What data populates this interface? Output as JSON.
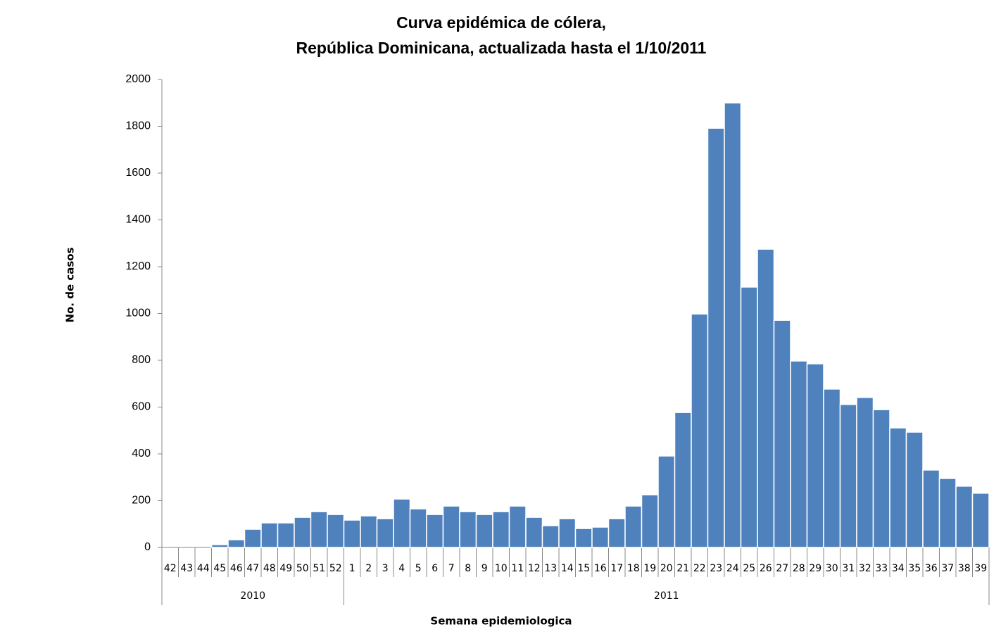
{
  "chart_data": {
    "type": "bar",
    "title": [
      "Curva epidémica de cólera,",
      "República Dominicana, actualizada hasta el  1/10/2011"
    ],
    "y_label": "No. de casos",
    "x_label": "Semana epidemiologica",
    "groups": [
      {
        "label": "2010",
        "categories": [
          "42",
          "43",
          "44",
          "45",
          "46",
          "47",
          "48",
          "49",
          "50",
          "51",
          "52"
        ]
      },
      {
        "label": "2011",
        "categories": [
          "1",
          "2",
          "3",
          "4",
          "5",
          "6",
          "7",
          "8",
          "9",
          "10",
          "11",
          "12",
          "13",
          "14",
          "15",
          "16",
          "17",
          "18",
          "19",
          "20",
          "21",
          "22",
          "23",
          "24",
          "25",
          "26",
          "27",
          "28",
          "29",
          "30",
          "31",
          "32",
          "33",
          "34",
          "35",
          "36",
          "37",
          "38",
          "39"
        ]
      }
    ],
    "values": [
      0,
      0,
      0,
      12,
      33,
      78,
      105,
      105,
      129,
      153,
      141,
      117,
      135,
      123,
      207,
      165,
      141,
      177,
      153,
      141,
      153,
      177,
      129,
      93,
      123,
      81,
      87,
      123,
      177,
      225,
      391,
      577,
      998,
      1792,
      1900,
      1113,
      1275,
      971,
      797,
      785,
      677,
      611,
      641,
      589,
      511,
      493,
      331,
      295,
      262,
      232
    ],
    "color": "#4f81bd",
    "ylim": [
      0,
      2000
    ],
    "yticks": [
      0,
      200,
      400,
      600,
      800,
      1000,
      1200,
      1400,
      1600,
      1800,
      2000
    ],
    "grid": false
  }
}
